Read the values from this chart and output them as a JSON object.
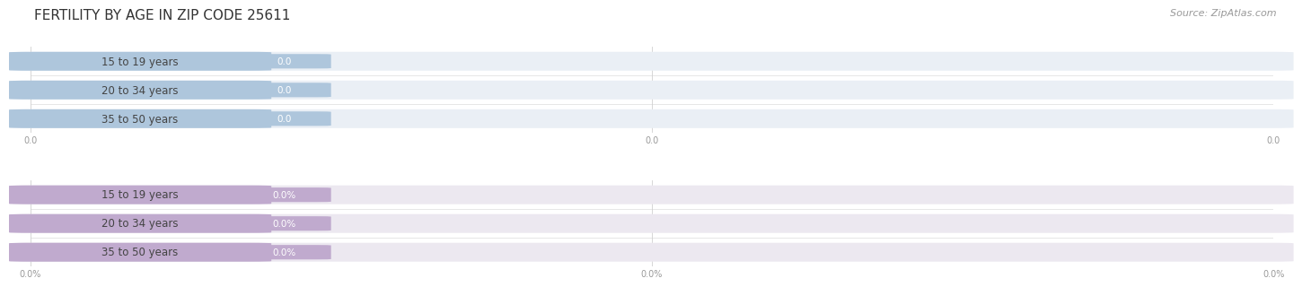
{
  "title": "FERTILITY BY AGE IN ZIP CODE 25611",
  "source": "Source: ZipAtlas.com",
  "top_section": {
    "categories": [
      "15 to 19 years",
      "20 to 34 years",
      "35 to 50 years"
    ],
    "values": [
      0.0,
      0.0,
      0.0
    ],
    "bar_bg_color": "#eaeff5",
    "bar_fill_color": "#aec6dc",
    "value_bg_color": "#aec6dc",
    "value_text_color": "#ffffff",
    "axis_label_color": "#999999",
    "x_tick_labels": [
      "0.0",
      "0.0",
      "0.0"
    ]
  },
  "bottom_section": {
    "categories": [
      "15 to 19 years",
      "20 to 34 years",
      "35 to 50 years"
    ],
    "values": [
      0.0,
      0.0,
      0.0
    ],
    "bar_bg_color": "#ece8f0",
    "bar_fill_color": "#c0aace",
    "value_bg_color": "#c0aace",
    "value_text_color": "#ffffff",
    "axis_label_color": "#999999",
    "x_tick_labels": [
      "0.0%",
      "0.0%",
      "0.0%"
    ]
  },
  "background_color": "#ffffff",
  "title_fontsize": 11,
  "label_fontsize": 8.5,
  "value_fontsize": 7.5,
  "source_fontsize": 8,
  "source_color": "#999999",
  "bar_height": 0.62,
  "label_text_color": "#444444"
}
